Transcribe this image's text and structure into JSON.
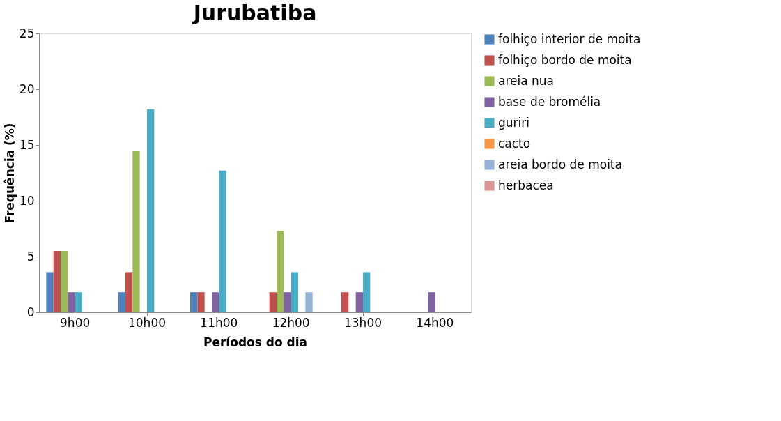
{
  "chart_data": {
    "type": "bar",
    "title": "Jurubatiba",
    "xlabel": "Períodos do dia",
    "ylabel": "Frequência (%)",
    "categories": [
      "9h00",
      "10h00",
      "11h00",
      "12h00",
      "13h00",
      "14h00"
    ],
    "series": [
      {
        "name": "folhiço interior de moita",
        "color": "#4f81bd",
        "values": [
          3.6,
          1.8,
          1.8,
          0,
          0,
          0
        ]
      },
      {
        "name": "folhiço bordo de moita",
        "color": "#c0504d",
        "values": [
          5.5,
          3.6,
          1.8,
          1.8,
          1.8,
          0
        ]
      },
      {
        "name": "areia nua",
        "color": "#9bbb59",
        "values": [
          5.5,
          14.5,
          0,
          7.3,
          0,
          0
        ]
      },
      {
        "name": "base de bromélia",
        "color": "#8064a2",
        "values": [
          1.8,
          0,
          1.8,
          1.8,
          1.8,
          1.8
        ]
      },
      {
        "name": "guriri",
        "color": "#4bacc6",
        "values": [
          1.8,
          18.2,
          12.7,
          3.6,
          3.6,
          0
        ]
      },
      {
        "name": "cacto",
        "color": "#f79646",
        "values": [
          0,
          0,
          0,
          0,
          0,
          0
        ]
      },
      {
        "name": "areia bordo de moita",
        "color": "#95b3d7",
        "values": [
          0,
          0,
          0,
          1.8,
          0,
          0
        ]
      },
      {
        "name": "herbacea",
        "color": "#d99694",
        "values": [
          0,
          0,
          0,
          0,
          0,
          0
        ]
      }
    ],
    "ylim": [
      0,
      25
    ],
    "yticks": [
      0,
      5,
      10,
      15,
      20,
      25
    ],
    "grid": false,
    "legend": "right"
  }
}
